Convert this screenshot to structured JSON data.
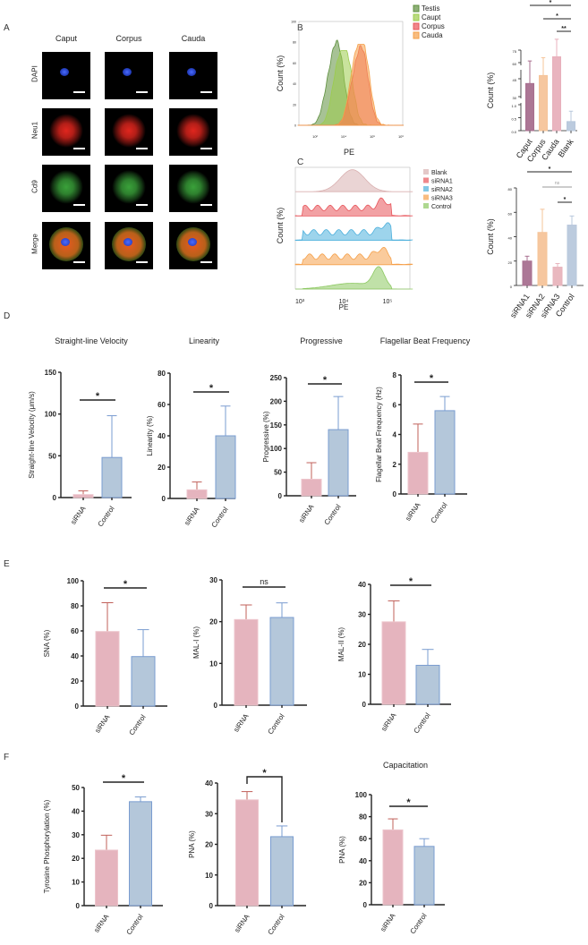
{
  "panels": {
    "A": "A",
    "B": "B",
    "C": "C",
    "D": "D",
    "E": "E",
    "F": "F"
  },
  "microscopy": {
    "columns": [
      "Caput",
      "Corpus",
      "Cauda"
    ],
    "rows": [
      {
        "label": "DAPI",
        "color": "#2a49d8"
      },
      {
        "label": "Neu1",
        "color": "#e0261e"
      },
      {
        "label": "Cd9",
        "color": "#3aa13a"
      },
      {
        "label": "Merge",
        "color": "#e8821e"
      }
    ]
  },
  "chart_data": [
    {
      "id": "B-hist",
      "type": "area",
      "xlabel": "PE",
      "ylabel": "Count (%)",
      "xticks": [
        "10²",
        "10⁴",
        "10⁵",
        "10⁶"
      ],
      "yticks": [
        0,
        20,
        40,
        60,
        80,
        100
      ],
      "ylim": [
        0,
        100
      ],
      "legend": "top-right",
      "series": [
        {
          "name": "Testis",
          "peak_log10": 3.8,
          "peak": 82,
          "color": "#5e8f3e"
        },
        {
          "name": "Caupt",
          "peak_log10": 4.1,
          "peak": 72,
          "color": "#9ccc4c"
        },
        {
          "name": "Corpus",
          "peak_log10": 4.65,
          "peak": 77,
          "color": "#e8545a"
        },
        {
          "name": "Cauda",
          "peak_log10": 4.7,
          "peak": 78,
          "color": "#f5a04a"
        }
      ]
    },
    {
      "id": "B-bar",
      "type": "bar",
      "ylabel": "Count (%)",
      "categories": [
        "Caput",
        "Corpus",
        "Cauda",
        "Blank"
      ],
      "values": [
        41,
        48,
        67,
        0.35
      ],
      "errors": [
        21,
        18,
        21,
        0.4
      ],
      "colors": [
        "#a86f8f",
        "#f5c49a",
        "#e8b0bc",
        "#b8c8dc"
      ],
      "yticks": [
        "0.0",
        "0.5",
        "1.0",
        "30",
        "45",
        "60",
        "75"
      ],
      "broken_axis": true,
      "significance": [
        {
          "from": 0,
          "to": 3,
          "label": "*"
        },
        {
          "from": 1,
          "to": 3,
          "label": "*"
        },
        {
          "from": 2,
          "to": 3,
          "label": "**"
        }
      ]
    },
    {
      "id": "C-ridge",
      "type": "area",
      "xlabel": "PE",
      "ylabel": "Count (%)",
      "xticks": [
        "10³",
        "10⁴",
        "10⁵"
      ],
      "legend": "top-right",
      "series": [
        {
          "name": "Blank",
          "peak_log10": 4.2,
          "color": "#d9b0b0"
        },
        {
          "name": "siRNA1",
          "peak_log10": 4.9,
          "color": "#e8545a"
        },
        {
          "name": "siRNA2",
          "peak_log10": 4.95,
          "color": "#4db0dc"
        },
        {
          "name": "siRNA3",
          "peak_log10": 4.85,
          "color": "#f5a04a"
        },
        {
          "name": "Control",
          "peak_log10": 4.8,
          "color": "#8cc860"
        }
      ]
    },
    {
      "id": "C-bar",
      "type": "bar",
      "ylabel": "Count (%)",
      "categories": [
        "siRNA1",
        "siRNA2",
        "siRNA3",
        "Control"
      ],
      "values": [
        20,
        43.5,
        15,
        49.5
      ],
      "errors": [
        4,
        19,
        3,
        7.5
      ],
      "colors": [
        "#a87090",
        "#f5c49a",
        "#e8b4bc",
        "#b8c8dc"
      ],
      "yticks": [
        0,
        20,
        40,
        60,
        80
      ],
      "ylim": [
        0,
        80
      ],
      "significance": [
        {
          "from": 0,
          "to": 3,
          "label": "*"
        },
        {
          "from": 1,
          "to": 3,
          "label": "ns"
        },
        {
          "from": 2,
          "to": 3,
          "label": "*"
        }
      ]
    },
    {
      "id": "D1",
      "type": "bar",
      "title": "Straight-line Velocity",
      "ylabel": "Straight-line Velocity (μm/s)",
      "categories": [
        "siRNA",
        "Control"
      ],
      "values": [
        3.5,
        48
      ],
      "errors": [
        4.5,
        50
      ],
      "yticks": [
        0,
        50,
        100,
        150
      ],
      "ylim": [
        0,
        150
      ],
      "significance": [
        {
          "from": 0,
          "to": 1,
          "label": "*"
        }
      ]
    },
    {
      "id": "D2",
      "type": "bar",
      "title": "Linearity",
      "ylabel": "Linearity (%)",
      "categories": [
        "siRNA",
        "Control"
      ],
      "values": [
        5.5,
        40
      ],
      "errors": [
        5,
        19
      ],
      "yticks": [
        0,
        20,
        40,
        60,
        80
      ],
      "ylim": [
        0,
        80
      ],
      "significance": [
        {
          "from": 0,
          "to": 1,
          "label": "*"
        }
      ]
    },
    {
      "id": "D3",
      "type": "bar",
      "title": "Progressive",
      "ylabel": "Progressive (%)",
      "categories": [
        "siRNA",
        "Control"
      ],
      "values": [
        35,
        140
      ],
      "errors": [
        35,
        70
      ],
      "yticks": [
        0,
        50,
        100,
        150,
        200,
        250
      ],
      "ylim": [
        0,
        250
      ],
      "significance": [
        {
          "from": 0,
          "to": 1,
          "label": "*"
        }
      ]
    },
    {
      "id": "D4",
      "type": "bar",
      "title": "Flagellar Beat Frequency",
      "ylabel": "Flagellar Beat Frequency (Hz)",
      "categories": [
        "siRNA",
        "Control"
      ],
      "values": [
        2.8,
        5.6
      ],
      "errors": [
        1.9,
        0.95
      ],
      "yticks": [
        0,
        2,
        4,
        6,
        8
      ],
      "ylim": [
        0,
        8
      ],
      "significance": [
        {
          "from": 0,
          "to": 1,
          "label": "*"
        }
      ]
    },
    {
      "id": "E1",
      "type": "bar",
      "ylabel": "SNA (%)",
      "categories": [
        "siRNA",
        "Control"
      ],
      "values": [
        59.5,
        39.5
      ],
      "errors": [
        23,
        21.5
      ],
      "yticks": [
        0,
        20,
        40,
        60,
        80,
        100
      ],
      "ylim": [
        0,
        100
      ],
      "significance": [
        {
          "from": 0,
          "to": 1,
          "label": "*"
        }
      ]
    },
    {
      "id": "E2",
      "type": "bar",
      "ylabel": "MAL-I (%)",
      "categories": [
        "siRNA",
        "Control"
      ],
      "values": [
        20.5,
        21
      ],
      "errors": [
        3.5,
        3.5
      ],
      "yticks": [
        0,
        10,
        20,
        30
      ],
      "ylim": [
        0,
        30
      ],
      "significance": [
        {
          "from": 0,
          "to": 1,
          "label": "ns"
        }
      ]
    },
    {
      "id": "E3",
      "type": "bar",
      "ylabel": "MAL-II (%)",
      "categories": [
        "siRNA",
        "Control"
      ],
      "values": [
        27.5,
        13
      ],
      "errors": [
        7,
        5.3
      ],
      "yticks": [
        0,
        10,
        20,
        30,
        40
      ],
      "ylim": [
        0,
        40
      ],
      "significance": [
        {
          "from": 0,
          "to": 1,
          "label": "*"
        }
      ]
    },
    {
      "id": "F1",
      "type": "bar",
      "ylabel": "Tyrosine Phosphorylation (%)",
      "categories": [
        "siRNA",
        "Control"
      ],
      "values": [
        23.5,
        44
      ],
      "errors": [
        6.3,
        2
      ],
      "yticks": [
        0,
        10,
        20,
        30,
        40,
        50
      ],
      "ylim": [
        0,
        50
      ],
      "significance": [
        {
          "from": 0,
          "to": 1,
          "label": "*"
        }
      ]
    },
    {
      "id": "F2",
      "type": "bar",
      "ylabel": "PNA (%)",
      "categories": [
        "siRNA",
        "Control"
      ],
      "values": [
        34.5,
        22.5
      ],
      "errors": [
        2.7,
        3.5
      ],
      "yticks": [
        0,
        10,
        20,
        30,
        40
      ],
      "ylim": [
        0,
        40
      ],
      "significance": [
        {
          "from": 0,
          "to": 1,
          "label": "*",
          "bracket": true
        }
      ]
    },
    {
      "id": "F3",
      "type": "bar",
      "title": "Capacitation",
      "ylabel": "PNA (%)",
      "categories": [
        "siRNA",
        "Control"
      ],
      "values": [
        68,
        53
      ],
      "errors": [
        10,
        7
      ],
      "yticks": [
        0,
        20,
        40,
        60,
        80,
        100
      ],
      "ylim": [
        0,
        100
      ],
      "significance": [
        {
          "from": 0,
          "to": 1,
          "label": "*"
        }
      ]
    }
  ],
  "colors": {
    "siRNA": "#e4b0bb",
    "siRNA_edge": "#c0605a",
    "Control": "#b0c4d8",
    "Control_edge": "#7a9cd0"
  }
}
